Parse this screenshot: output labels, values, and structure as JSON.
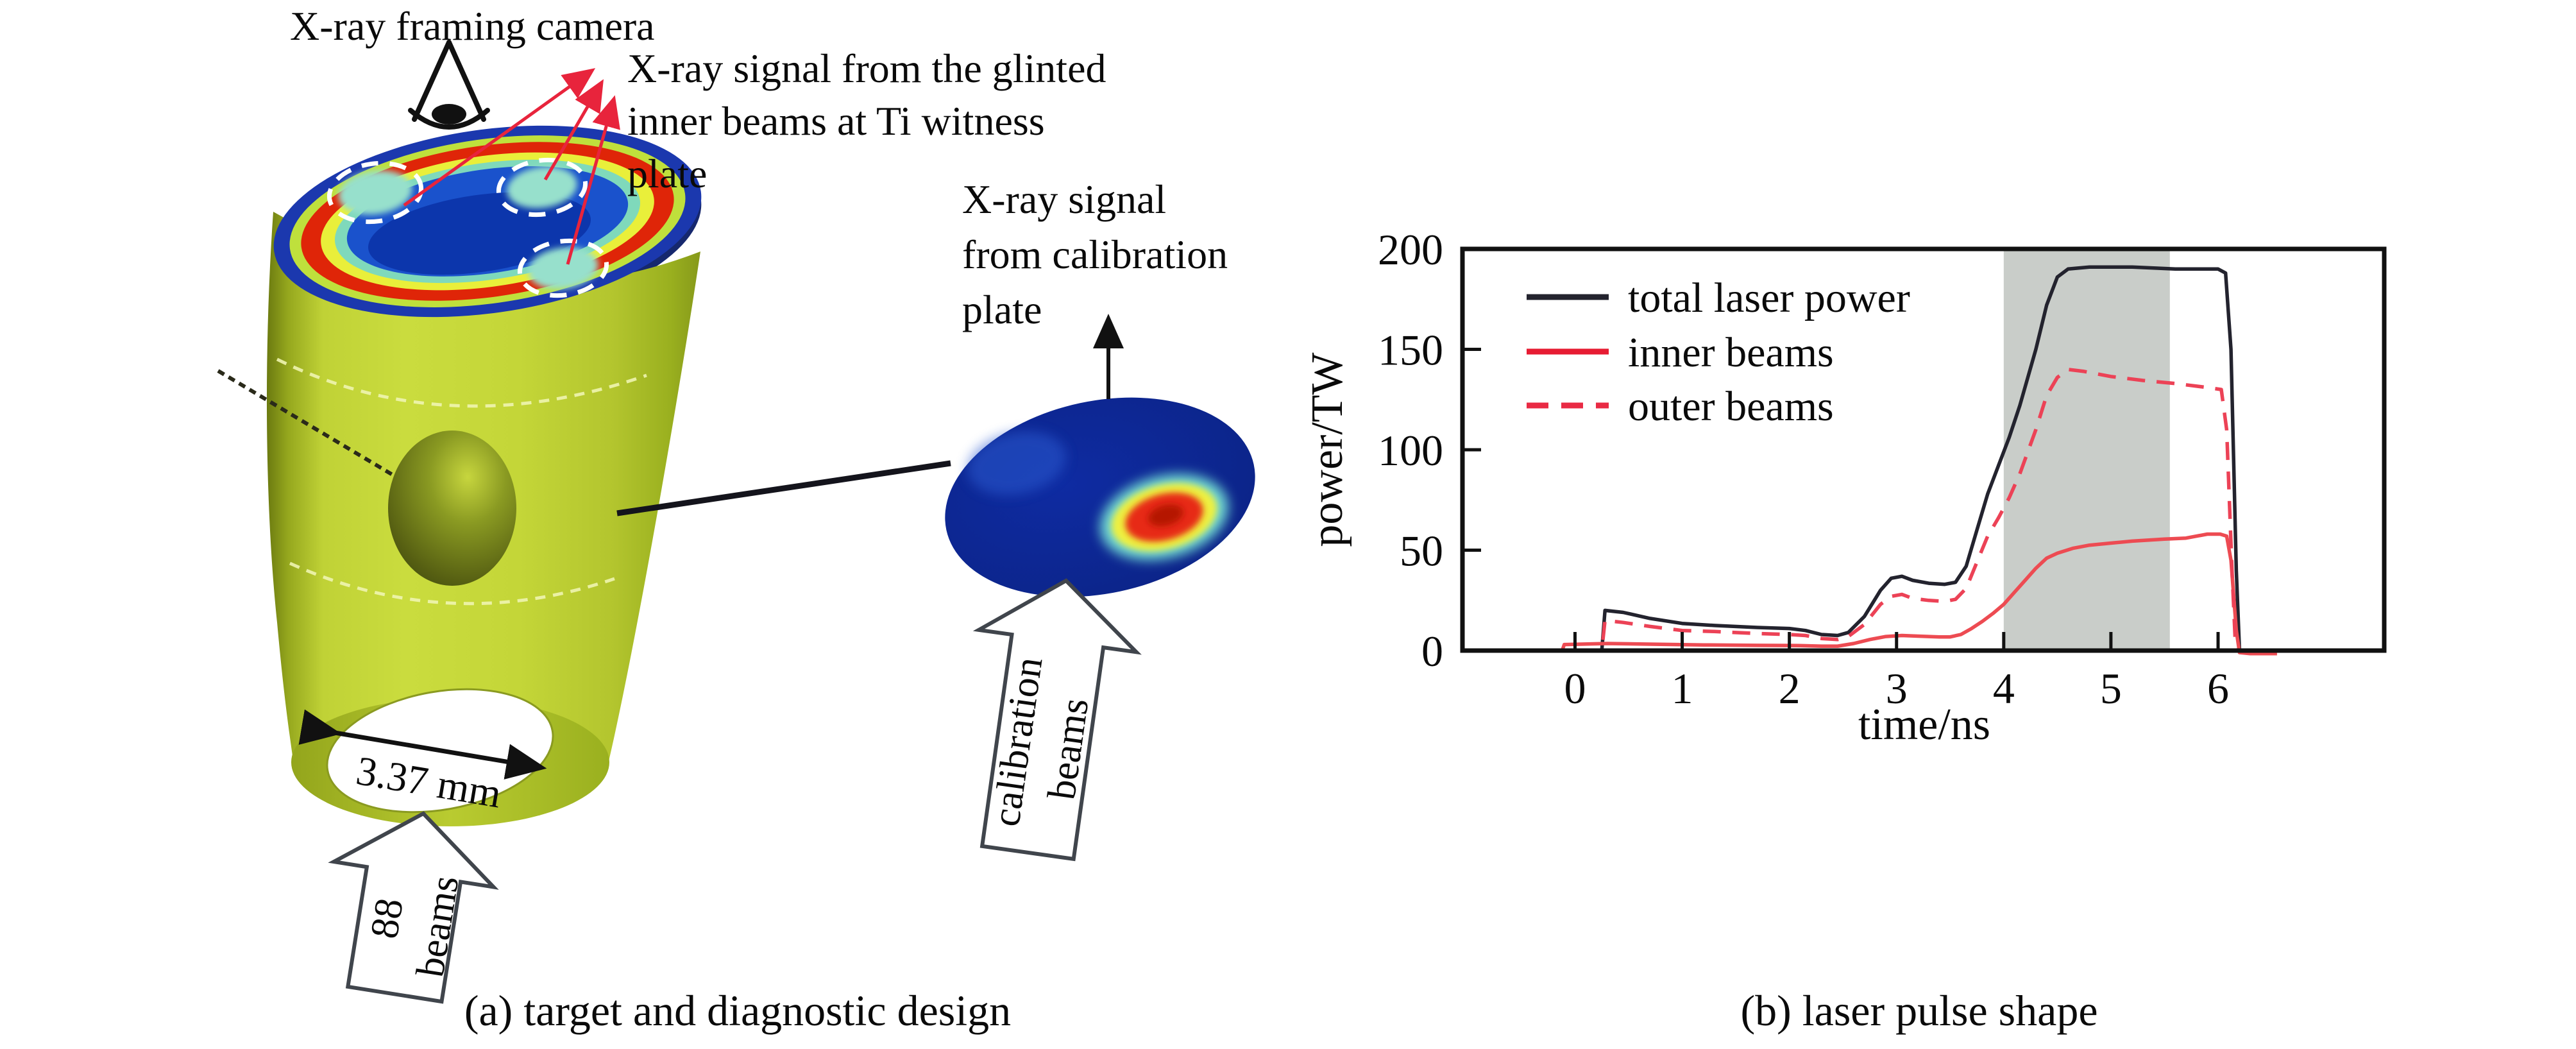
{
  "figure": {
    "panel_a": {
      "caption": "(a) target and diagnostic design",
      "camera_label": "X-ray framing camera",
      "glint_label_lines": [
        "X-ray signal from the glinted",
        "inner beams at Ti witness",
        "plate"
      ],
      "calibration_signal_lines": [
        "X-ray signal",
        "from calibration",
        "plate"
      ],
      "diameter_label": "3.37 mm",
      "beams_arrow_lines": [
        "88",
        "beams"
      ],
      "calibration_arrow_lines": [
        "calibration",
        "beams"
      ]
    },
    "panel_b": {
      "caption": "(b) laser pulse shape"
    }
  },
  "chart_data": {
    "type": "line",
    "title": "",
    "xlabel": "time/ns",
    "ylabel": "power/TW",
    "xlim": [
      -1.05,
      7.55
    ],
    "ylim": [
      0,
      200
    ],
    "xticks": [
      0,
      1,
      2,
      3,
      4,
      5,
      6
    ],
    "yticks": [
      0,
      50,
      100,
      150,
      200
    ],
    "grid": false,
    "legend_position": "upper-left",
    "shaded_region": {
      "x_start": 4.0,
      "x_end": 5.55,
      "color": "#c9cdc9"
    },
    "series": [
      {
        "name": "total laser power",
        "style": "solid",
        "color": "#23232e",
        "points": [
          [
            -0.2,
            0
          ],
          [
            0.25,
            0
          ],
          [
            0.28,
            20
          ],
          [
            0.45,
            19
          ],
          [
            0.7,
            16
          ],
          [
            1.0,
            13.5
          ],
          [
            1.3,
            12.5
          ],
          [
            1.7,
            11.5
          ],
          [
            2.0,
            11
          ],
          [
            2.15,
            10
          ],
          [
            2.3,
            8
          ],
          [
            2.45,
            7.5
          ],
          [
            2.55,
            9
          ],
          [
            2.7,
            17
          ],
          [
            2.85,
            30
          ],
          [
            2.95,
            36
          ],
          [
            3.05,
            37
          ],
          [
            3.15,
            35
          ],
          [
            3.3,
            33.5
          ],
          [
            3.45,
            33
          ],
          [
            3.55,
            34
          ],
          [
            3.65,
            42
          ],
          [
            3.75,
            60
          ],
          [
            3.85,
            78
          ],
          [
            3.95,
            92
          ],
          [
            4.05,
            106
          ],
          [
            4.15,
            122
          ],
          [
            4.3,
            150
          ],
          [
            4.4,
            172
          ],
          [
            4.5,
            186
          ],
          [
            4.6,
            190
          ],
          [
            4.8,
            191
          ],
          [
            5.2,
            191
          ],
          [
            5.6,
            190
          ],
          [
            6.0,
            190
          ],
          [
            6.07,
            188
          ],
          [
            6.12,
            150
          ],
          [
            6.17,
            40
          ],
          [
            6.2,
            0
          ]
        ]
      },
      {
        "name": "inner beams",
        "style": "solid",
        "color": "#ed4b52",
        "legend_color": "#e71c33",
        "points": [
          [
            -0.12,
            0
          ],
          [
            -0.1,
            3
          ],
          [
            0.3,
            3.5
          ],
          [
            0.7,
            3.2
          ],
          [
            1.2,
            2.8
          ],
          [
            1.7,
            2.6
          ],
          [
            2.1,
            2.5
          ],
          [
            2.3,
            2.2
          ],
          [
            2.45,
            2.2
          ],
          [
            2.6,
            3.5
          ],
          [
            2.75,
            5.5
          ],
          [
            2.9,
            7
          ],
          [
            3.05,
            7.5
          ],
          [
            3.2,
            7.2
          ],
          [
            3.4,
            6.8
          ],
          [
            3.5,
            6.8
          ],
          [
            3.6,
            8
          ],
          [
            3.7,
            11
          ],
          [
            3.8,
            14.5
          ],
          [
            3.9,
            18.5
          ],
          [
            4.0,
            23
          ],
          [
            4.1,
            29
          ],
          [
            4.2,
            35
          ],
          [
            4.3,
            41
          ],
          [
            4.4,
            46
          ],
          [
            4.5,
            48.5
          ],
          [
            4.65,
            51
          ],
          [
            4.8,
            52.5
          ],
          [
            5.0,
            53.5
          ],
          [
            5.2,
            54.5
          ],
          [
            5.5,
            55.5
          ],
          [
            5.7,
            56
          ],
          [
            5.9,
            58
          ],
          [
            6.02,
            58
          ],
          [
            6.08,
            57
          ],
          [
            6.12,
            45
          ],
          [
            6.17,
            10
          ],
          [
            6.2,
            -1
          ],
          [
            6.3,
            -1.5
          ],
          [
            6.55,
            -1.5
          ]
        ]
      },
      {
        "name": "outer beams",
        "style": "dashed",
        "color": "#ec4256",
        "legend_color": "#e92a44",
        "points": [
          [
            -0.2,
            0
          ],
          [
            0.25,
            0
          ],
          [
            0.28,
            15
          ],
          [
            0.45,
            14
          ],
          [
            0.7,
            12
          ],
          [
            1.0,
            10
          ],
          [
            1.3,
            9.5
          ],
          [
            1.7,
            8.5
          ],
          [
            2.0,
            8
          ],
          [
            2.15,
            7.5
          ],
          [
            2.3,
            6
          ],
          [
            2.45,
            5.5
          ],
          [
            2.55,
            7
          ],
          [
            2.7,
            13
          ],
          [
            2.85,
            23
          ],
          [
            2.95,
            27
          ],
          [
            3.05,
            28
          ],
          [
            3.15,
            26
          ],
          [
            3.3,
            25
          ],
          [
            3.45,
            24.5
          ],
          [
            3.55,
            25.5
          ],
          [
            3.65,
            31
          ],
          [
            3.75,
            44
          ],
          [
            3.85,
            57
          ],
          [
            3.95,
            66
          ],
          [
            4.05,
            76
          ],
          [
            4.15,
            88
          ],
          [
            4.3,
            110
          ],
          [
            4.4,
            127
          ],
          [
            4.5,
            136
          ],
          [
            4.6,
            140
          ],
          [
            4.75,
            139
          ],
          [
            5.0,
            136.5
          ],
          [
            5.3,
            134.5
          ],
          [
            5.6,
            133
          ],
          [
            5.9,
            131
          ],
          [
            6.03,
            130
          ],
          [
            6.08,
            110
          ],
          [
            6.13,
            40
          ],
          [
            6.16,
            5
          ],
          [
            6.18,
            0
          ]
        ]
      }
    ]
  },
  "colors": {
    "annotation_arrow_red": "#e8243c",
    "hohlraum_yellow": "#c4d638",
    "face_navy": "#1b38ae",
    "face_red_ring": "#df2508",
    "face_yellow_ring": "#e9ef3a",
    "face_teal_ring": "#7fd9bb",
    "face_blue_interior": "#1a52cc",
    "plate_navy": "#0d2796",
    "hotspot_red": "#e72c12"
  }
}
